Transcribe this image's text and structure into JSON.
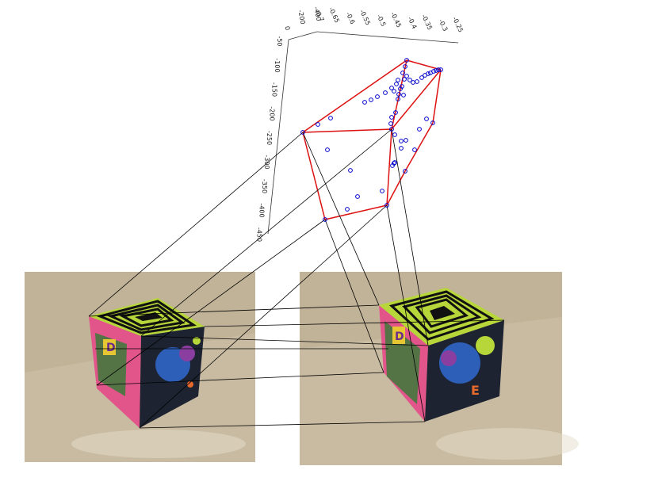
{
  "axes": {
    "z_ticks": [
      "-50",
      "-100",
      "-150",
      "-200",
      "-250",
      "-300",
      "-350",
      "-400",
      "-450"
    ],
    "x_ticks": [
      "-0.7",
      "-0.65",
      "-0.6",
      "-0.55",
      "-0.5",
      "-0.45",
      "-0.4",
      "-0.35",
      "-0.3",
      "-0.25"
    ],
    "y_ticks": [
      "-400",
      "-200",
      "0"
    ],
    "grid": false
  },
  "colors": {
    "points": "#0000cc",
    "hull": "#dd1111",
    "correspondence_lines": "#000000",
    "floor": "#c6b89e",
    "cube_top_yellow": "#b7d63a",
    "cube_top_black": "#111111",
    "cube_face_blue": "#2d5fb8",
    "cube_face_pink": "#e2558a",
    "cube_side_dark": "#1d2330"
  },
  "photos": {
    "left": {
      "description": "photo-left"
    },
    "right": {
      "description": "photo-right"
    }
  }
}
